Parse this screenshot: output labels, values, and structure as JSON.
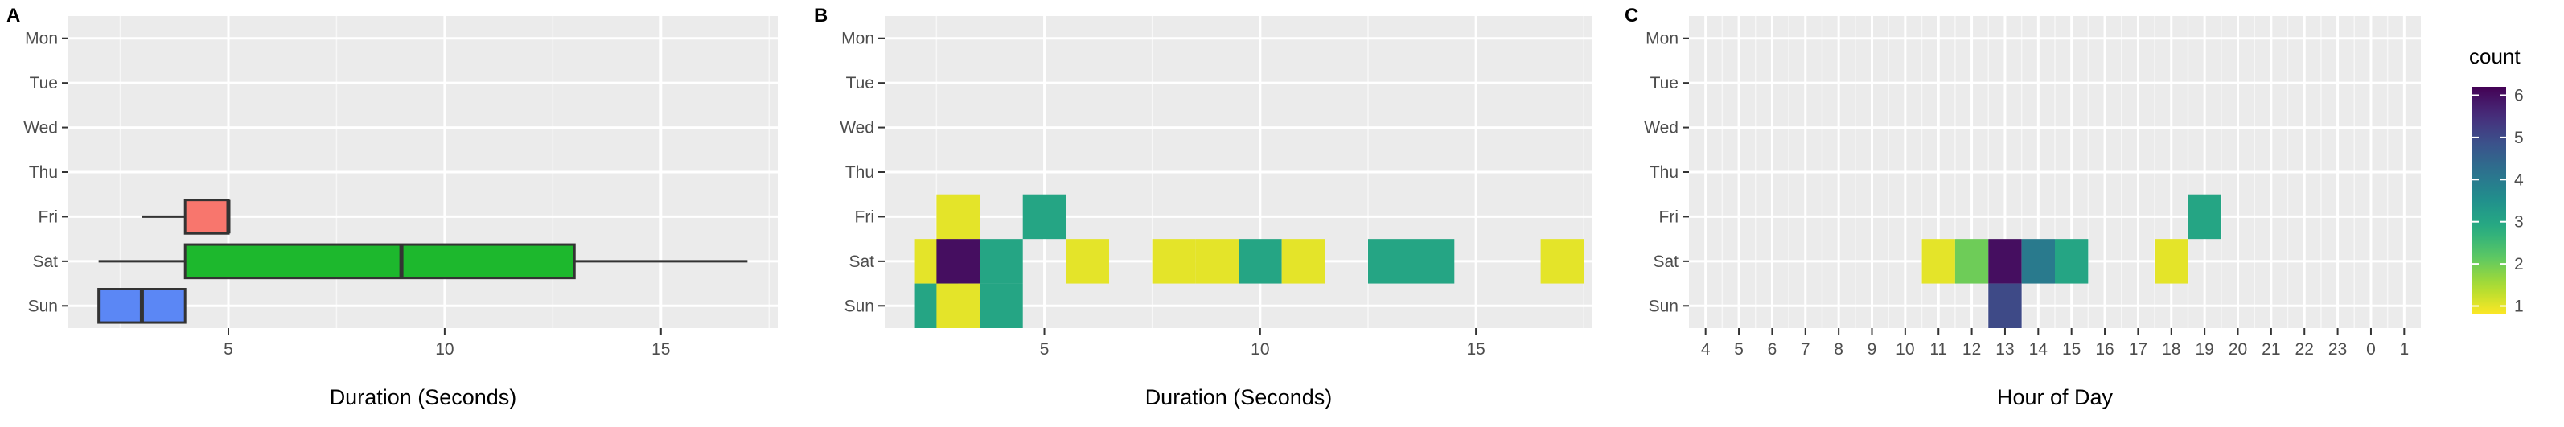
{
  "chart_data": [
    {
      "panel": "A",
      "type": "boxplot",
      "xlabel": "Duration (Seconds)",
      "ylabel": "",
      "categories": [
        "Mon",
        "Tue",
        "Wed",
        "Thu",
        "Fri",
        "Sat",
        "Sun"
      ],
      "x_ticks": [
        5,
        10,
        15
      ],
      "xlim": [
        1.3,
        17.7
      ],
      "grid": true,
      "boxes": [
        {
          "day": "Fri",
          "min": 3,
          "q1": 4,
          "median": 5,
          "q3": 5,
          "max": 5,
          "color": "#F8766D"
        },
        {
          "day": "Sat",
          "min": 2,
          "q1": 4,
          "median": 9,
          "q3": 13,
          "max": 17,
          "color": "#1DB82D"
        },
        {
          "day": "Sun",
          "min": 2,
          "q1": 2,
          "median": 3,
          "q3": 4,
          "max": 4,
          "color": "#5B87F5"
        }
      ]
    },
    {
      "panel": "B",
      "type": "heatmap",
      "xlabel": "Duration (Seconds)",
      "ylabel": "",
      "categories": [
        "Mon",
        "Tue",
        "Wed",
        "Thu",
        "Fri",
        "Sat",
        "Sun"
      ],
      "x_ticks": [
        5,
        10,
        15
      ],
      "xlim": [
        1.3,
        17.7
      ],
      "grid": true,
      "tiles": [
        {
          "day": "Fri",
          "x": 3,
          "count": 1
        },
        {
          "day": "Fri",
          "x": 5,
          "count": 3
        },
        {
          "day": "Sat",
          "x": 2.5,
          "count": 1
        },
        {
          "day": "Sat",
          "x": 3,
          "count": 6
        },
        {
          "day": "Sat",
          "x": 4,
          "count": 3
        },
        {
          "day": "Sat",
          "x": 6,
          "count": 1
        },
        {
          "day": "Sat",
          "x": 8,
          "count": 1
        },
        {
          "day": "Sat",
          "x": 9,
          "count": 1
        },
        {
          "day": "Sat",
          "x": 10,
          "count": 3
        },
        {
          "day": "Sat",
          "x": 11,
          "count": 1
        },
        {
          "day": "Sat",
          "x": 13,
          "count": 3
        },
        {
          "day": "Sat",
          "x": 14,
          "count": 3
        },
        {
          "day": "Sat",
          "x": 17,
          "count": 1
        },
        {
          "day": "Sun",
          "x": 2.5,
          "count": 3
        },
        {
          "day": "Sun",
          "x": 3,
          "count": 1
        },
        {
          "day": "Sun",
          "x": 4,
          "count": 3
        }
      ]
    },
    {
      "panel": "C",
      "type": "heatmap",
      "xlabel": "Hour of Day",
      "ylabel": "",
      "categories": [
        "Mon",
        "Tue",
        "Wed",
        "Thu",
        "Fri",
        "Sat",
        "Sun"
      ],
      "hours": [
        "4",
        "5",
        "6",
        "7",
        "8",
        "9",
        "10",
        "11",
        "12",
        "13",
        "14",
        "15",
        "16",
        "17",
        "18",
        "19",
        "20",
        "21",
        "22",
        "23",
        "0",
        "1"
      ],
      "grid": true,
      "tiles": [
        {
          "day": "Fri",
          "hour": "19",
          "count": 3
        },
        {
          "day": "Sat",
          "hour": "11",
          "count": 1
        },
        {
          "day": "Sat",
          "hour": "12",
          "count": 2
        },
        {
          "day": "Sat",
          "hour": "13",
          "count": 6
        },
        {
          "day": "Sat",
          "hour": "14",
          "count": 4
        },
        {
          "day": "Sat",
          "hour": "15",
          "count": 3
        },
        {
          "day": "Sat",
          "hour": "18",
          "count": 1
        },
        {
          "day": "Sun",
          "hour": "13",
          "count": 5
        }
      ]
    }
  ],
  "legend": {
    "title": "count",
    "min": 0.8,
    "max": 6.2,
    "ticks": [
      1,
      2,
      3,
      4,
      5,
      6
    ],
    "placement": "right"
  }
}
